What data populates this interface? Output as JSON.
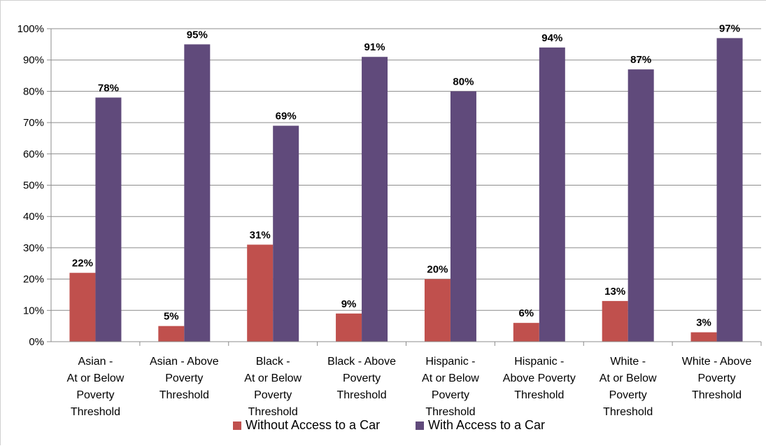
{
  "chart_data": {
    "type": "bar",
    "title": "",
    "xlabel": "",
    "ylabel": "",
    "ylim": [
      0,
      100
    ],
    "y_ticks": [
      "0%",
      "10%",
      "20%",
      "30%",
      "40%",
      "50%",
      "60%",
      "70%",
      "80%",
      "90%",
      "100%"
    ],
    "grid": "horizontal",
    "legend_position": "bottom",
    "categories": [
      [
        "Asian -",
        "At or Below",
        "Poverty",
        "Threshold"
      ],
      [
        "Asian - Above",
        "Poverty",
        "Threshold"
      ],
      [
        "Black -",
        "At or Below",
        "Poverty",
        "Threshold"
      ],
      [
        "Black - Above",
        "Poverty",
        "Threshold"
      ],
      [
        "Hispanic -",
        "At or Below",
        "Poverty",
        "Threshold"
      ],
      [
        "Hispanic -",
        "Above Poverty",
        "Threshold"
      ],
      [
        "White -",
        "At or Below",
        "Poverty",
        "Threshold"
      ],
      [
        "White - Above",
        "Poverty",
        "Threshold"
      ]
    ],
    "series": [
      {
        "name": "Without Access to a Car",
        "color": "#c0504d",
        "values": [
          22,
          5,
          31,
          9,
          20,
          6,
          13,
          3
        ],
        "labels": [
          "22%",
          "5%",
          "31%",
          "9%",
          "20%",
          "6%",
          "13%",
          "3%"
        ]
      },
      {
        "name": "With Access to a Car",
        "color": "#604a7b",
        "values": [
          78,
          95,
          69,
          91,
          80,
          94,
          87,
          97
        ],
        "labels": [
          "78%",
          "95%",
          "69%",
          "91%",
          "80%",
          "94%",
          "87%",
          "97%"
        ]
      }
    ]
  }
}
